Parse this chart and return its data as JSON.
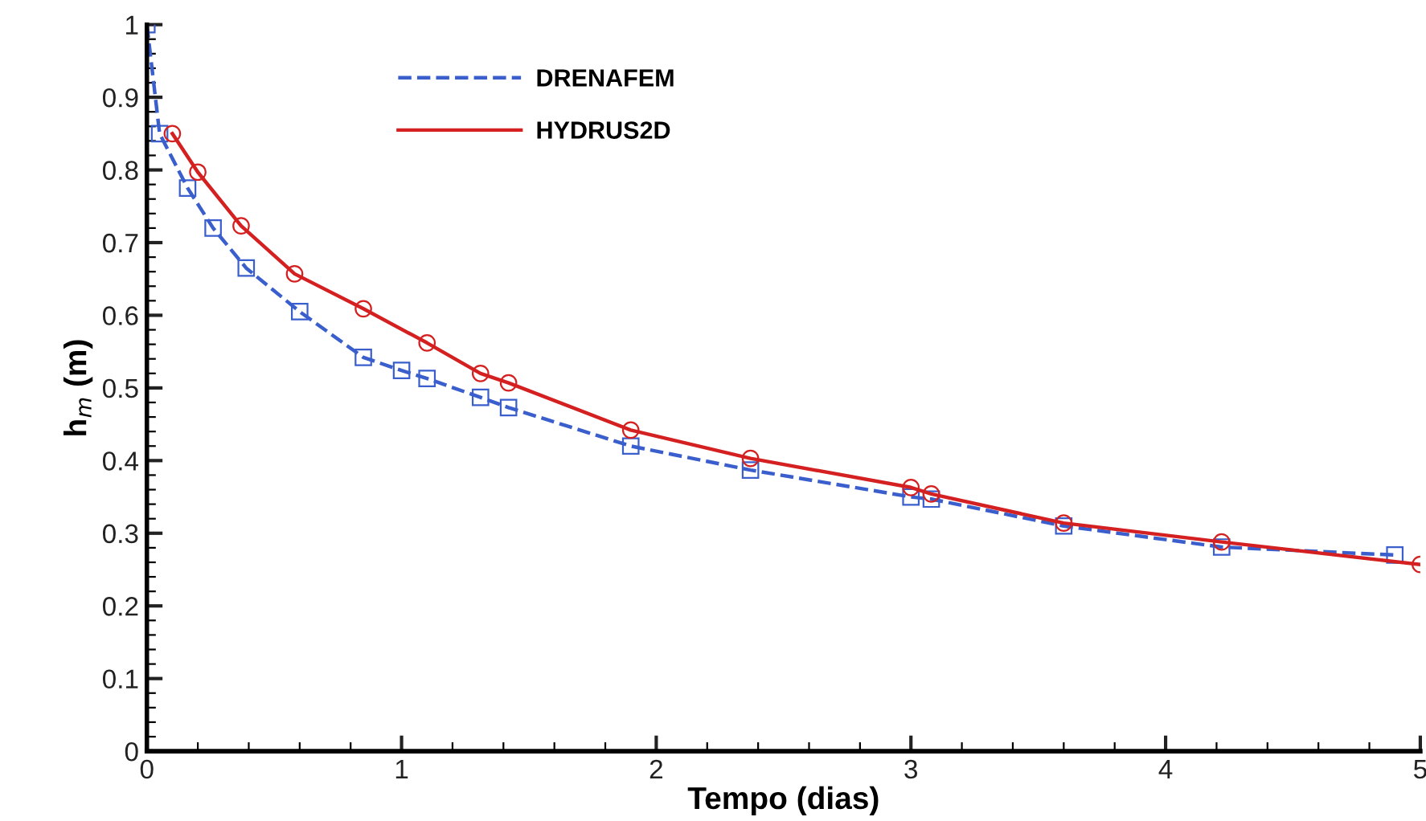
{
  "chart_data": {
    "type": "line",
    "xlabel": "Tempo (dias)",
    "ylabel": "h$_{m}$ (m)",
    "xlim": [
      0,
      5
    ],
    "xticks": [
      0,
      1,
      2,
      3,
      4,
      5
    ],
    "ylim": [
      0,
      1
    ],
    "yticks": [
      0,
      0.1,
      0.2,
      0.3,
      0.4,
      0.5,
      0.6,
      0.7,
      0.8,
      0.9,
      1
    ],
    "grid": false,
    "legend": "top left",
    "series": [
      {
        "name": "DRENAFEM",
        "color": "#3a5fcd",
        "marker": "square",
        "line_style": "dashed",
        "x": [
          0,
          0.05,
          0.16,
          0.26,
          0.39,
          0.6,
          0.85,
          1.0,
          1.1,
          1.31,
          1.42,
          1.9,
          2.37,
          3.0,
          3.08,
          3.6,
          4.22,
          4.9
        ],
        "values": [
          1.0,
          0.85,
          0.775,
          0.72,
          0.665,
          0.605,
          0.542,
          0.524,
          0.513,
          0.487,
          0.473,
          0.42,
          0.387,
          0.35,
          0.347,
          0.31,
          0.281,
          0.27
        ]
      },
      {
        "name": "HYDRUS2D",
        "color": "#d42020",
        "marker": "circle",
        "line_style": "solid",
        "x": [
          0.1,
          0.2,
          0.37,
          0.58,
          0.85,
          1.1,
          1.31,
          1.42,
          1.9,
          2.37,
          3.0,
          3.08,
          3.6,
          4.22,
          5.0
        ],
        "values": [
          0.85,
          0.797,
          0.723,
          0.657,
          0.609,
          0.562,
          0.52,
          0.507,
          0.442,
          0.403,
          0.363,
          0.354,
          0.314,
          0.288,
          0.257
        ]
      }
    ]
  }
}
